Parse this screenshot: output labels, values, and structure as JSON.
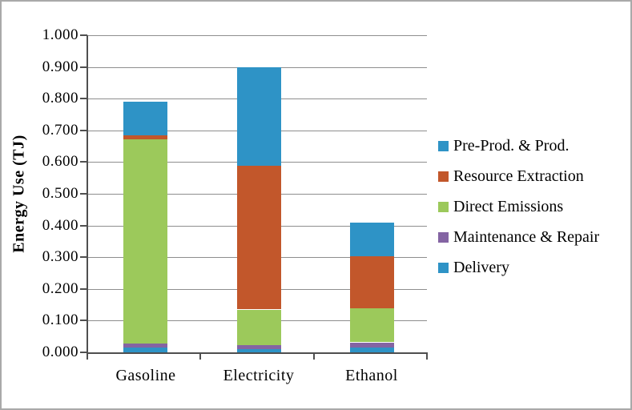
{
  "chart_data": {
    "type": "bar",
    "stacked": true,
    "title": "",
    "xlabel": "",
    "ylabel": "Energy Use (TJ)",
    "categories": [
      "Gasoline",
      "Electricity",
      "Ethanol"
    ],
    "series": [
      {
        "name": "Delivery",
        "color": "#2E93C6",
        "values": [
          0.015,
          0.01,
          0.016
        ]
      },
      {
        "name": "Maintenance & Repair",
        "color": "#8464A3",
        "values": [
          0.013,
          0.013,
          0.015
        ]
      },
      {
        "name": "Direct Emissions",
        "color": "#9CC95B",
        "values": [
          0.644,
          0.112,
          0.107
        ]
      },
      {
        "name": "Resource Extraction",
        "color": "#C2572B",
        "values": [
          0.013,
          0.455,
          0.165
        ]
      },
      {
        "name": "Pre-Prod. & Prod.",
        "color": "#2E93C6",
        "values": [
          0.105,
          0.31,
          0.107
        ]
      }
    ],
    "stack_totals": [
      0.79,
      0.9,
      0.41
    ],
    "ylim": [
      0,
      1.0
    ],
    "ytick_step": 0.1,
    "ytick_labels": [
      "0.000",
      "0.100",
      "0.200",
      "0.300",
      "0.400",
      "0.500",
      "0.600",
      "0.700",
      "0.800",
      "0.900",
      "1.000"
    ],
    "grid": true,
    "legend": {
      "position": "right",
      "entries_top_to_bottom": [
        "Pre-Prod. & Prod.",
        "Resource Extraction",
        "Direct Emissions",
        "Maintenance & Repair",
        "Delivery"
      ]
    },
    "colors": {
      "blue": "#2E93C6",
      "orange": "#C2572B",
      "green": "#9CC95B",
      "purple": "#8464A3",
      "gridline": "#8e8e8e",
      "axis": "#4f4f4f",
      "frame": "#a9a9a9",
      "background": "#ffffff"
    }
  }
}
